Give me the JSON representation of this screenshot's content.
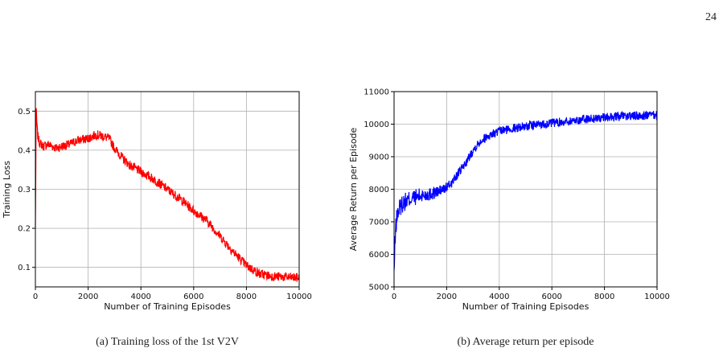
{
  "page_number": "24",
  "captions": {
    "a": "(a)  Training loss of the 1st V2V",
    "b": "(b)  Average return per episode"
  },
  "chart_data": [
    {
      "type": "line",
      "color": "#ff0000",
      "xlabel": "Number of Training Episodes",
      "ylabel": "Training Loss",
      "xlim": [
        0,
        10000
      ],
      "ylim": [
        0.05,
        0.55
      ],
      "xticks": [
        0,
        2000,
        4000,
        6000,
        8000,
        10000
      ],
      "xtick_labels": [
        "0",
        "2000",
        "4000",
        "6000",
        "8000",
        "10000"
      ],
      "yticks": [
        0.1,
        0.2,
        0.3,
        0.4,
        0.5
      ],
      "ytick_labels": [
        "0.1",
        "0.2",
        "0.3",
        "0.4",
        "0.5"
      ],
      "grid": true,
      "noise": 0.012,
      "series": [
        {
          "x": [
            0,
            30,
            80,
            150,
            300,
            500,
            800,
            1000,
            1300,
            1600,
            2000,
            2300,
            2600,
            2800,
            3000,
            3300,
            3600,
            4000,
            4500,
            5000,
            5500,
            6000,
            6500,
            7000,
            7500,
            8000,
            8500,
            9000,
            9500,
            10000
          ],
          "y": [
            0.2,
            0.5,
            0.44,
            0.42,
            0.41,
            0.415,
            0.405,
            0.41,
            0.415,
            0.425,
            0.43,
            0.44,
            0.435,
            0.43,
            0.405,
            0.38,
            0.36,
            0.345,
            0.325,
            0.3,
            0.275,
            0.245,
            0.22,
            0.18,
            0.14,
            0.105,
            0.083,
            0.077,
            0.075,
            0.073
          ]
        }
      ]
    },
    {
      "type": "line",
      "color": "#0000ff",
      "xlabel": "Number of Training Episodes",
      "ylabel": "Average Return per Episode",
      "xlim": [
        0,
        10000
      ],
      "ylim": [
        5000,
        11000
      ],
      "xticks": [
        0,
        2000,
        4000,
        6000,
        8000,
        10000
      ],
      "xtick_labels": [
        "0",
        "2000",
        "4000",
        "6000",
        "8000",
        "10000"
      ],
      "yticks": [
        5000,
        6000,
        7000,
        8000,
        9000,
        10000,
        11000
      ],
      "ytick_labels": [
        "5000",
        "6000",
        "7000",
        "8000",
        "9000",
        "10000",
        "11000"
      ],
      "grid": true,
      "noise": 140,
      "series": [
        {
          "x": [
            0,
            30,
            60,
            100,
            150,
            200,
            300,
            400,
            600,
            800,
            1000,
            1300,
            1600,
            1900,
            2200,
            2500,
            2800,
            3000,
            3300,
            3600,
            4000,
            4500,
            5000,
            5500,
            6000,
            6500,
            7000,
            7500,
            8000,
            8500,
            9000,
            9500,
            10000
          ],
          "y": [
            5400,
            6200,
            6800,
            7100,
            7300,
            7400,
            7550,
            7600,
            7700,
            7750,
            7800,
            7850,
            7900,
            8000,
            8200,
            8550,
            8900,
            9200,
            9500,
            9650,
            9780,
            9870,
            9940,
            9990,
            10030,
            10080,
            10130,
            10170,
            10200,
            10230,
            10250,
            10260,
            10270
          ]
        }
      ]
    }
  ]
}
